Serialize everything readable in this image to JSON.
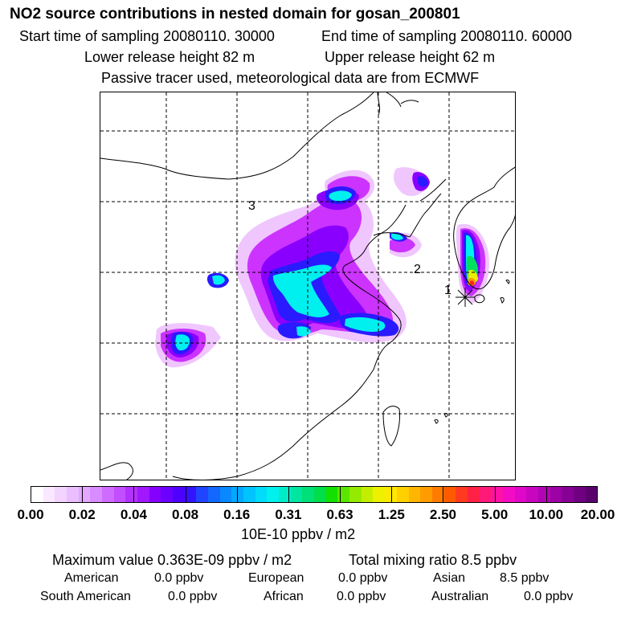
{
  "title": "NO2 source contributions in nested domain for gosan_200801",
  "header": {
    "start": "Start time of sampling 20080110. 30000",
    "end": "End time of sampling 20080110. 60000",
    "lower": "Lower release height   82 m",
    "upper": "Upper release height   62 m",
    "note": "Passive tracer used, meteorological data are from ECMWF"
  },
  "map": {
    "markers": [
      "1",
      "2",
      "3"
    ],
    "plume_colors": {
      "light": "#f0c6ff",
      "magenta": "#cc33ff",
      "purple": "#8a00ff",
      "blue": "#2a1aff",
      "cyan": "#00f0f0",
      "green": "#00e060",
      "yellow": "#e8f000",
      "orange": "#ff9a00",
      "red": "#ff2020"
    }
  },
  "colorbar": {
    "ticks": [
      "0.00",
      "0.02",
      "0.04",
      "0.08",
      "0.16",
      "0.31",
      "0.63",
      "1.25",
      "2.50",
      "5.00",
      "10.00",
      "20.00"
    ],
    "colors": [
      "#ffffff",
      "#f9e8ff",
      "#f2d4ff",
      "#eabeff",
      "#e2a8ff",
      "#d98cff",
      "#cf6cff",
      "#c24eff",
      "#b231ff",
      "#a118ff",
      "#8600ff",
      "#6a00ff",
      "#4d00ff",
      "#3413ff",
      "#2044ff",
      "#1368ff",
      "#0a88ff",
      "#04a8ff",
      "#00c4ff",
      "#00dcfa",
      "#00f0ee",
      "#00ecc8",
      "#00e6a0",
      "#00e078",
      "#00de4a",
      "#12e000",
      "#5ae600",
      "#94ea00",
      "#c4ee00",
      "#eef000",
      "#ffe800",
      "#ffd000",
      "#ffb600",
      "#ff9c00",
      "#ff7c00",
      "#ff5a00",
      "#ff3a20",
      "#ff2046",
      "#ff1a78",
      "#ff12a4",
      "#f40cc4",
      "#e008c8",
      "#c806c0",
      "#b204b4",
      "#9c02a6",
      "#860096",
      "#700082",
      "#5a006c"
    ],
    "units": "10E-10 ppbv / m2"
  },
  "summary": {
    "max_value": "Maximum value  0.363E-09 ppbv / m2",
    "total": "Total mixing ratio       8.5 ppbv",
    "regions_row1": [
      {
        "name": "American",
        "value": "0.0 ppbv"
      },
      {
        "name": "European",
        "value": "0.0 ppbv"
      },
      {
        "name": "Asian",
        "value": "8.5 ppbv"
      }
    ],
    "regions_row2": [
      {
        "name": "South American",
        "value": "0.0 ppbv"
      },
      {
        "name": "African",
        "value": "0.0 ppbv"
      },
      {
        "name": "Australian",
        "value": "0.0 ppbv"
      }
    ]
  }
}
